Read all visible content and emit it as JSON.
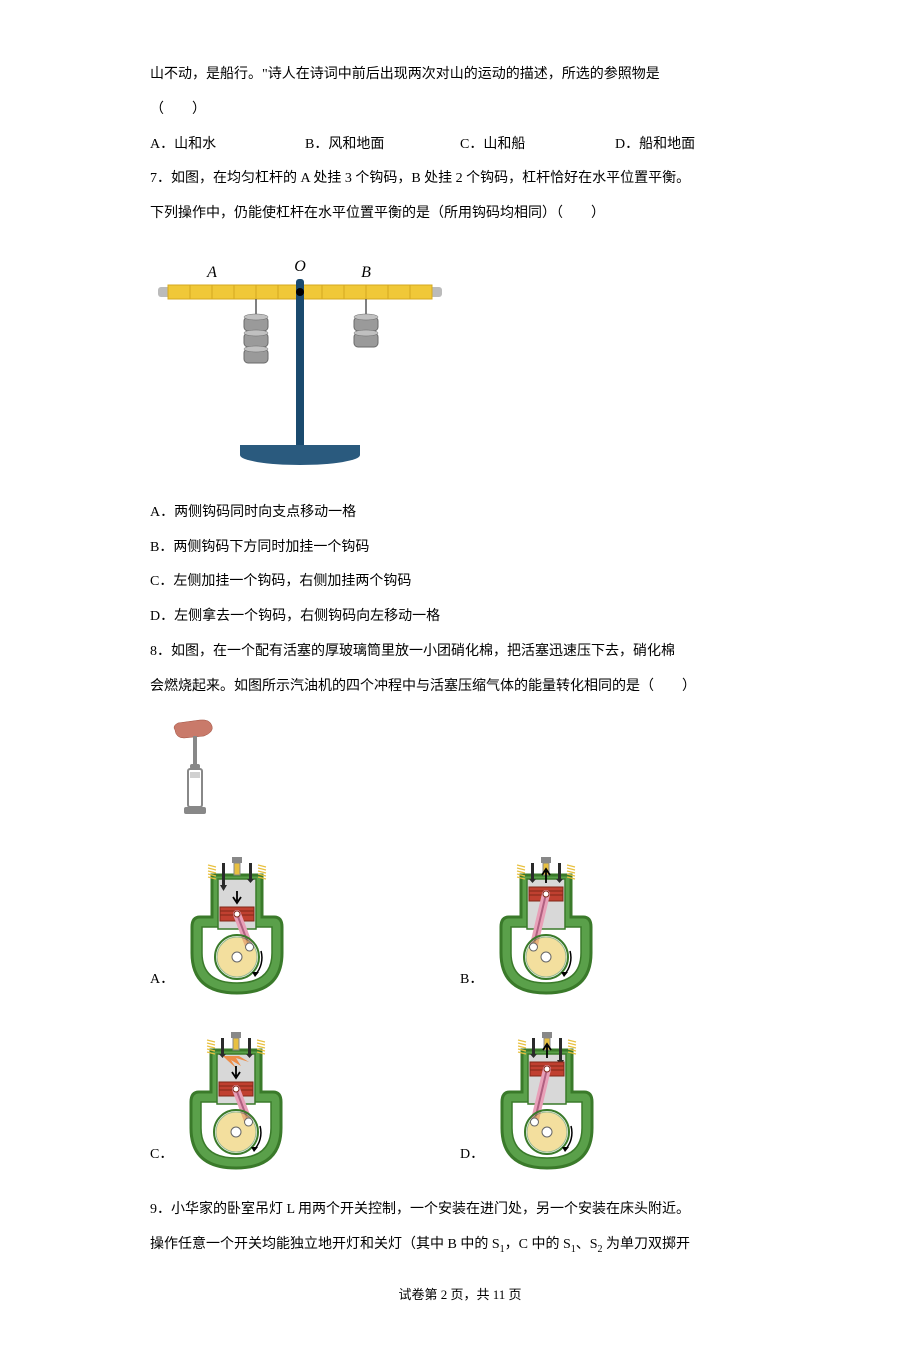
{
  "q6": {
    "tail_line": "山不动，是船行。\"诗人在诗词中前后出现两次对山的运动的描述，所选的参照物是",
    "paren_line": "（　　）",
    "opts": {
      "a": "A．山和水",
      "b": "B．风和地面",
      "c": "C．山和船",
      "d": "D．船和地面"
    }
  },
  "q7": {
    "line1": "7．如图，在均匀杠杆的 A 处挂 3 个钩码，B 处挂 2 个钩码，杠杆恰好在水平位置平衡。",
    "line2": "下列操作中，仍能使杠杆在水平位置平衡的是（所用钩码均相同）（　　）",
    "figure": {
      "label_A": "A",
      "label_O": "O",
      "label_B": "B",
      "beam_color": "#f0c838",
      "beam_dark": "#d4a820",
      "stand_color": "#1a4a6e",
      "base_color": "#2a5a7e",
      "weight_color": "#9a9a9a",
      "weight_dark": "#6a6a6a",
      "tick_count": 12
    },
    "opts": {
      "a": "A．两侧钩码同时向支点移动一格",
      "b": "B．两侧钩码下方同时加挂一个钩码",
      "c": "C．左侧加挂一个钩码，右侧加挂两个钩码",
      "d": "D．左侧拿去一个钩码，右侧钩码向左移动一格"
    }
  },
  "q8": {
    "line1": "8．如图，在一个配有活塞的厚玻璃筒里放一小团硝化棉，把活塞迅速压下去，硝化棉",
    "line2": "会燃烧起来。如图所示汽油机的四个冲程中与活塞压缩气体的能量转化相同的是（　　）",
    "piston_figure": {
      "hand_color": "#c97a6a",
      "tube_color": "#d0d0d0",
      "tube_dark": "#888"
    },
    "engine_figure": {
      "body_green": "#5aa04a",
      "body_dark": "#3a7a2a",
      "cylinder": "#d8d8d8",
      "piston_red": "#c04030",
      "crank_pink": "#e8a0b8",
      "valve_black": "#2a2a2a",
      "wheel_yellow": "#e8c040",
      "fire_orange": "#f08030"
    },
    "opts": {
      "a": "A．",
      "b": "B．",
      "c": "C．",
      "d": "D．"
    }
  },
  "q9": {
    "line1": "9．小华家的卧室吊灯 L 用两个开关控制，一个安装在进门处，另一个安装在床头附近。",
    "line2_pre": "操作任意一个开关均能独立地开灯和关灯（其中 B 中的 S",
    "line2_s1sub": "1",
    "line2_mid": "，C 中的 S",
    "line2_s1sub2": "1",
    "line2_mid2": "、S",
    "line2_s2sub": "2",
    "line2_post": " 为单刀双掷开"
  },
  "footer": {
    "text": "试卷第 2 页，共 11 页"
  }
}
